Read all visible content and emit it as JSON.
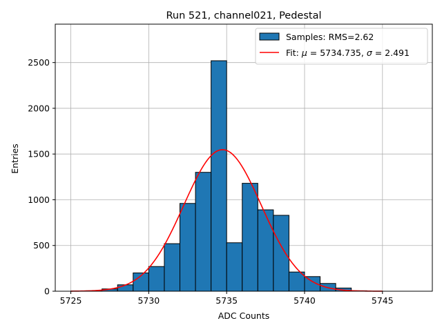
{
  "chart_data": {
    "type": "bar",
    "title": "Run 521, channel021, Pedestal",
    "xlabel": "ADC Counts",
    "ylabel": "Entries",
    "xlim": [
      5724,
      5748.2
    ],
    "ylim": [
      0,
      2920
    ],
    "xticks": [
      5725,
      5730,
      5735,
      5740,
      5745
    ],
    "yticks": [
      0,
      500,
      1000,
      1500,
      2000,
      2500
    ],
    "grid": true,
    "legend_position": "top-right",
    "bin_width": 1,
    "series": [
      {
        "name": "Samples: RMS=2.62",
        "kind": "histogram",
        "color": "#1f77b4",
        "edgecolor": "#000000",
        "bins": [
          5725,
          5726,
          5727,
          5728,
          5729,
          5730,
          5731,
          5732,
          5733,
          5734,
          5735,
          5736,
          5737,
          5738,
          5739,
          5740,
          5741,
          5742,
          5743,
          5744,
          5745
        ],
        "values": [
          2,
          5,
          25,
          70,
          200,
          270,
          520,
          960,
          1300,
          2520,
          530,
          1180,
          890,
          830,
          210,
          160,
          85,
          35,
          5,
          0,
          0
        ]
      },
      {
        "name": "Fit: $\\mu$ = 5734.735, $\\sigma$ = 2.491",
        "kind": "gaussian",
        "color": "#ff0000",
        "mu": 5734.735,
        "sigma": 2.491,
        "amplitude": 1548,
        "x_range": [
          5725,
          5745
        ]
      }
    ],
    "legend_entries": [
      {
        "text": "Samples: RMS=2.62"
      },
      {
        "prefix": "Fit: ",
        "sym1": "μ",
        "mid": " = 5734.735, ",
        "sym2": "σ",
        "suffix": " = 2.491"
      }
    ]
  }
}
